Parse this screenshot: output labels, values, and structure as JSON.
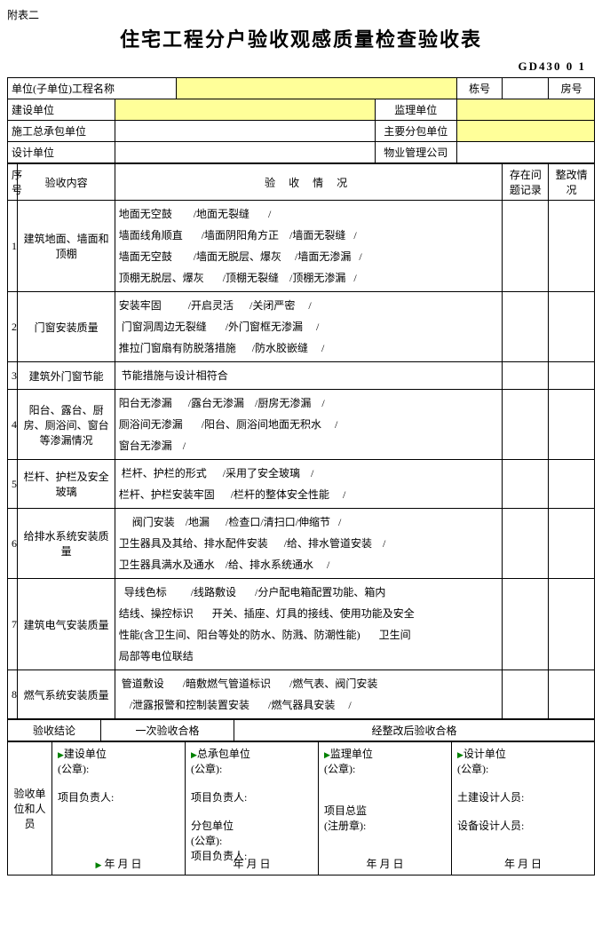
{
  "appendix": "附表二",
  "title": "住宅工程分户验收观感质量检查验收表",
  "form_code": "GD430 0 1",
  "header": {
    "unit_project_name_label": "单位(子单位)工程名称",
    "building_no_label": "栋号",
    "room_no_label": "房号",
    "build_unit_label": "建设单位",
    "supervise_unit_label": "监理单位",
    "contractor_label": "施工总承包单位",
    "sub_contractor_label": "主要分包单位",
    "design_unit_label": "设计单位",
    "property_mgmt_label": "物业管理公司"
  },
  "cols": {
    "seq": "序号",
    "content": "验收内容",
    "situation": "验  收  情  况",
    "issues": "存在问题记录",
    "rectify": "整改情况"
  },
  "rows": [
    {
      "n": "1",
      "content": "建筑地面、墙面和顶棚",
      "lines": [
        "地面无空鼓        /地面无裂缝       /",
        "墙面线角顺直       /墙面阴阳角方正    /墙面无裂缝   /",
        "墙面无空鼓        /墙面无脱层、爆灰     /墙面无渗漏   /",
        "顶棚无脱层、爆灰       /顶棚无裂缝    /顶棚无渗漏   /"
      ]
    },
    {
      "n": "2",
      "content": "门窗安装质量",
      "lines": [
        "安装牢固          /开启灵活      /关闭严密     /",
        " 门窗洞周边无裂缝       /外门窗框无渗漏     /",
        "推拉门窗扇有防脱落措施      /防水胶嵌缝     /"
      ]
    },
    {
      "n": "3",
      "content": "建筑外门窗节能",
      "lines": [
        " 节能措施与设计相符合"
      ]
    },
    {
      "n": "4",
      "content": "阳台、露台、厨房、厕浴间、窗台等渗漏情况",
      "lines": [
        "阳台无渗漏      /露台无渗漏    /厨房无渗漏    /",
        "厕浴间无渗漏       /阳台、厕浴间地面无积水     /",
        "窗台无渗漏    /"
      ]
    },
    {
      "n": "5",
      "content": "栏杆、护栏及安全玻璃",
      "lines": [
        " 栏杆、护栏的形式      /采用了安全玻璃    /",
        "栏杆、护栏安装牢固      /栏杆的整体安全性能     /"
      ]
    },
    {
      "n": "6",
      "content": "给排水系统安装质量",
      "lines": [
        "     阀门安装    /地漏      /检查口/清扫口/伸缩节   /",
        "卫生器具及其给、排水配件安装      /给、排水管道安装    /",
        "卫生器具满水及通水    /给、排水系统通水     /"
      ]
    },
    {
      "n": "7",
      "content": "建筑电气安装质量",
      "lines": [
        "  导线色标         /线路敷设       /分户配电箱配置功能、箱内",
        "结线、操控标识       开关、插座、灯具的接线、使用功能及安全",
        "性能(含卫生间、阳台等处的防水、防溅、防潮性能)       卫生间",
        "局部等电位联结"
      ]
    },
    {
      "n": "8",
      "content": "燃气系统安装质量",
      "lines": [
        " 管道敷设       /暗敷燃气管道标识       /燃气表、阀门安装",
        "    /泄露报警和控制装置安装       /燃气器具安装     /"
      ]
    }
  ],
  "conclusion": {
    "label": "验收结论",
    "pass_once": "一次验收合格",
    "pass_after": "经整改后验收合格"
  },
  "signatures": {
    "row_label": "验收单位和人员",
    "build": "建设单位",
    "contractor": "总承包单位",
    "supervise": "监理单位",
    "design": "设计单位",
    "seal": "(公章):",
    "proj_leader": "项目负责人:",
    "sub": " 分包单位",
    "supervisor_general": " 项目总监",
    "reg_seal": "(注册章):",
    "civil_designer": "土建设计人员:",
    "equip_designer": "设备设计人员:",
    "date": "年  月  日"
  },
  "colors": {
    "highlight": "#ffff99"
  }
}
